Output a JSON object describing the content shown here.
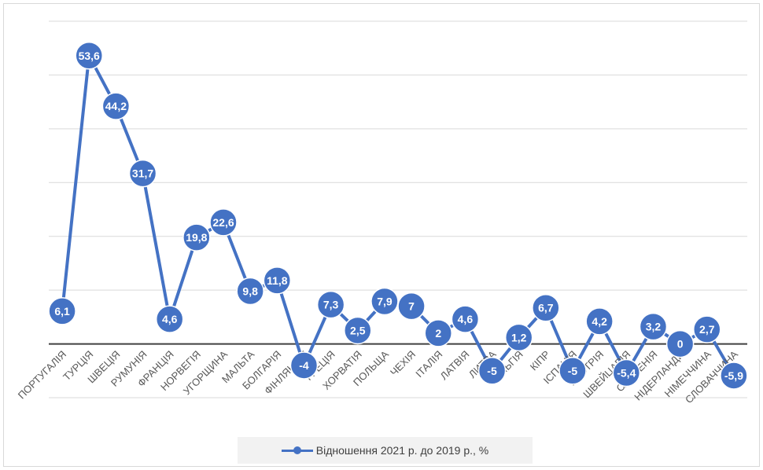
{
  "chart_data": {
    "type": "line",
    "title": "",
    "xlabel": "",
    "ylabel": "",
    "categories": [
      "ПОРТУГАЛІЯ",
      "ТУРЦІЯ",
      "ШВЕЦІЯ",
      "РУМУНІЯ",
      "ФРАНЦІЯ",
      "НОРВЕГІЯ",
      "УГОРЩИНА",
      "МАЛЬТА",
      "БОЛГАРІЯ",
      "ФІНЛЯНДІЯ",
      "ГРЕЦІЯ",
      "ХОРВАТІЯ",
      "ПОЛЬЩА",
      "ЧЕХІЯ",
      "ІТАЛІЯ",
      "ЛАТВІЯ",
      "ЛИТВА",
      "БЕЛЬГІЯ",
      "КІПР",
      "ІСПАНІЯ",
      "АВСТРІЯ",
      "ШВЕЙЦАРІЯ",
      "СЛОВЕНІЯ",
      "НІДЕРЛАНДИ",
      "НІМЕЧЧИНА",
      "СЛОВАЧЧИНА"
    ],
    "series": [
      {
        "name": "Відношення 2021 р. до 2019 р., %",
        "values": [
          6.1,
          53.6,
          44.2,
          31.7,
          4.6,
          19.8,
          22.6,
          9.8,
          11.8,
          -4,
          7.3,
          2.5,
          7.9,
          7,
          2,
          4.6,
          -5,
          1.2,
          6.7,
          -5,
          4.2,
          -5.4,
          3.2,
          0,
          2.7,
          -5.9
        ],
        "labels": [
          "6,1",
          "53,6",
          "44,2",
          "31,7",
          "4,6",
          "19,8",
          "22,6",
          "9,8",
          "11,8",
          "-4",
          "7,3",
          "2,5",
          "7,9",
          "7",
          "2",
          "4,6",
          "-5",
          "1,2",
          "6,7",
          "-5",
          "4,2",
          "-5,4",
          "3,2",
          "0",
          "2,7",
          "-5,9"
        ],
        "color": "#4472c4"
      }
    ],
    "ylim": [
      -10,
      60
    ],
    "grid": true,
    "legend_position": "bottom"
  }
}
